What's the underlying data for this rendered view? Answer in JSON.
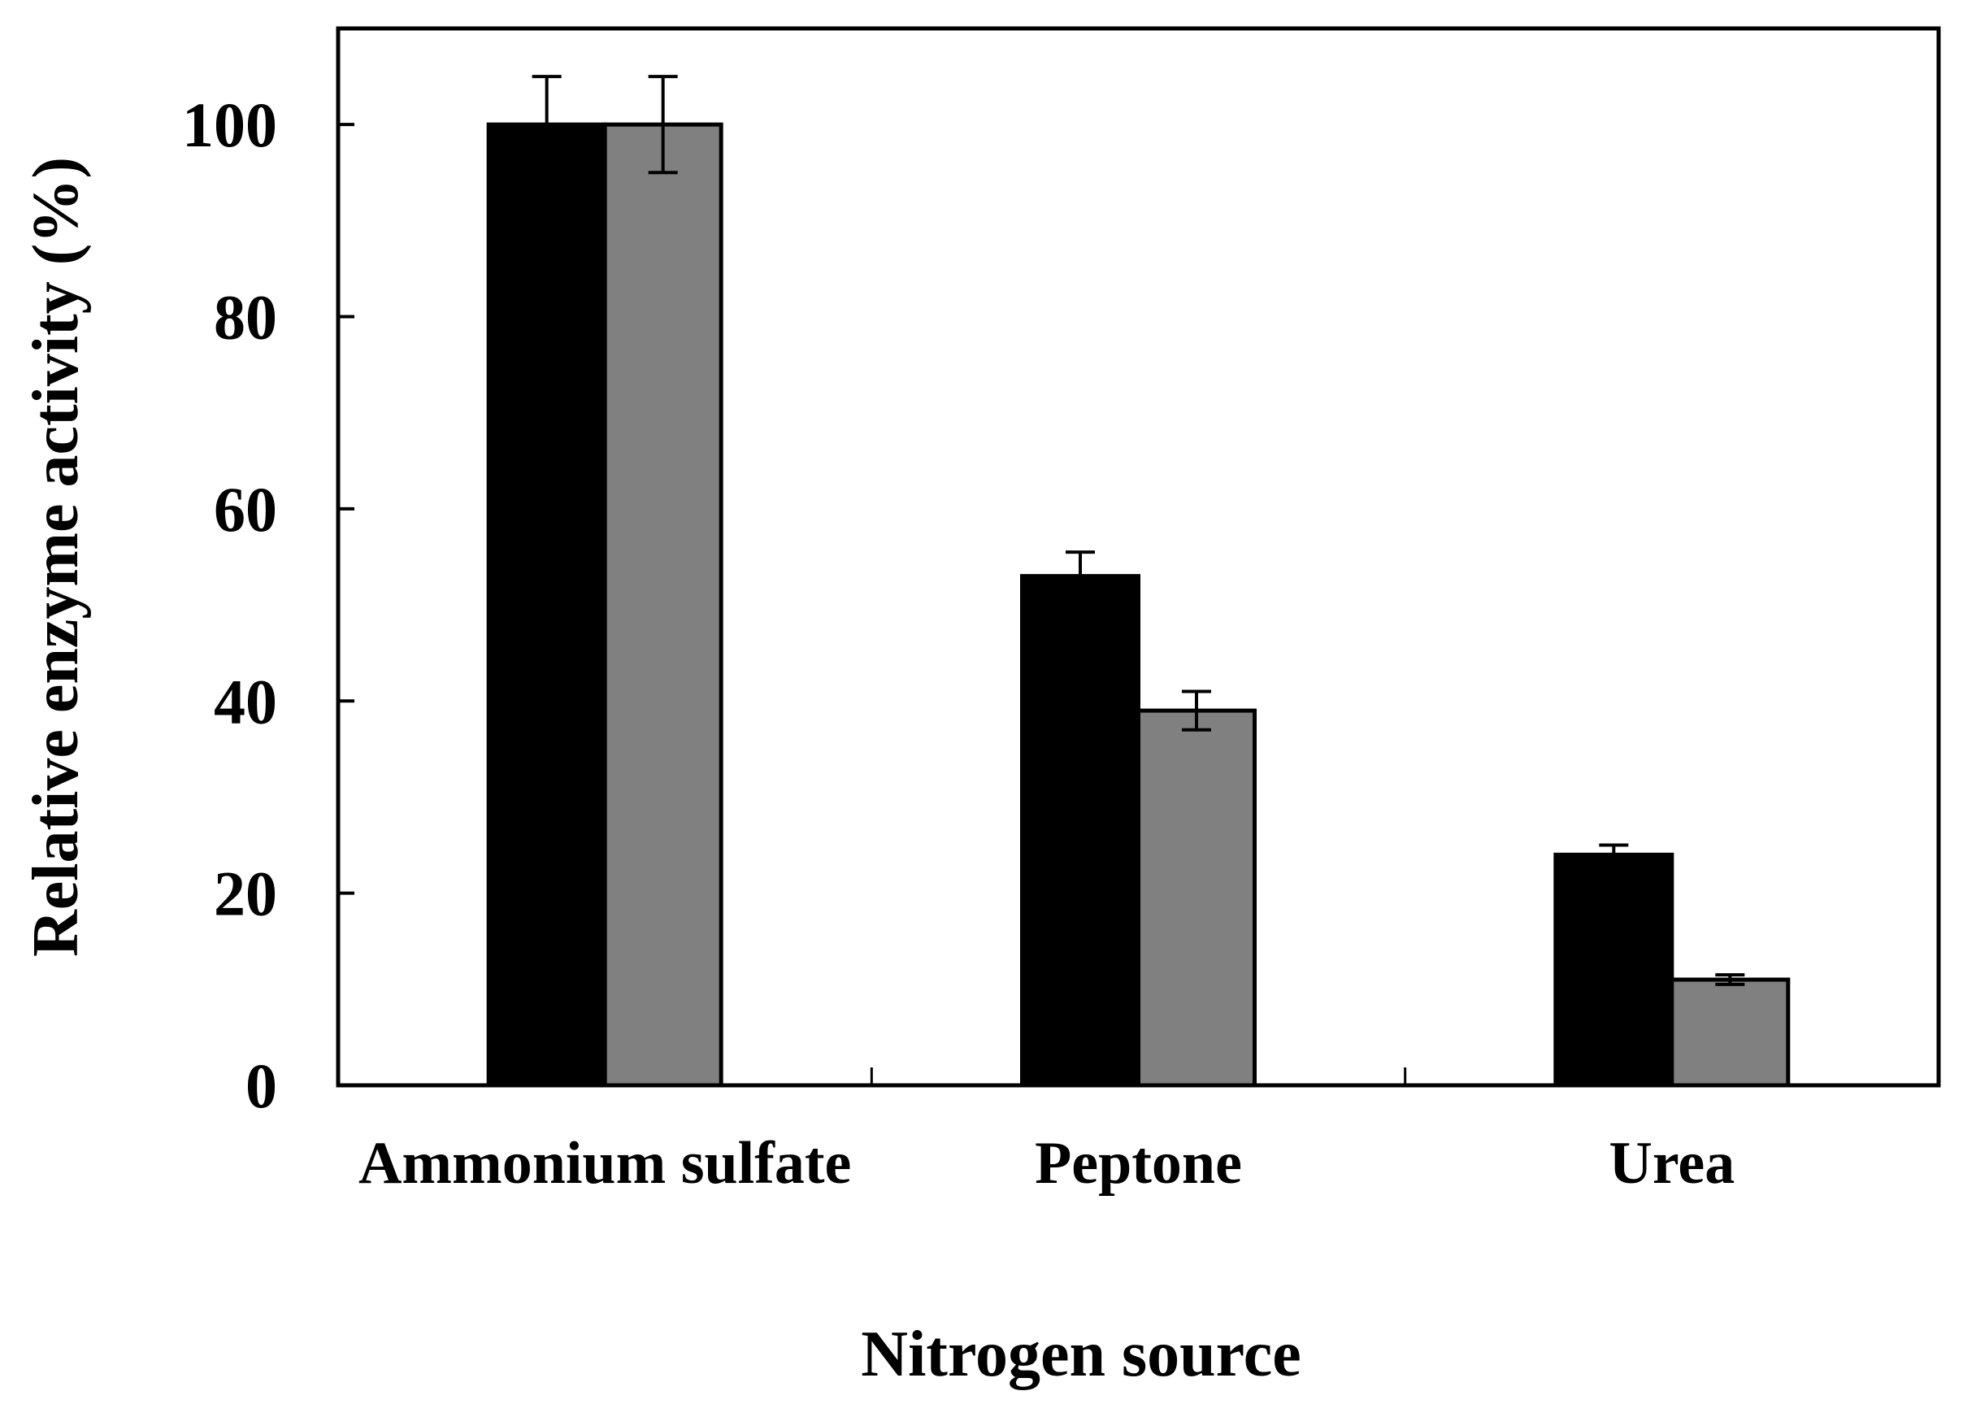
{
  "chart_data": {
    "type": "bar",
    "title": "",
    "xlabel": "Nitrogen source",
    "ylabel": "Relative enzyme activity (%)",
    "categories": [
      "Ammonium sulfate",
      "Peptone",
      "Urea"
    ],
    "ylim": [
      0,
      110
    ],
    "yticks": [
      0,
      20,
      40,
      60,
      80,
      100
    ],
    "grid": false,
    "legend": "none",
    "series": [
      {
        "values": [
          100,
          53,
          24
        ],
        "errors": [
          5,
          2.5,
          1
        ],
        "color": "#000000"
      },
      {
        "values": [
          100,
          39,
          11
        ],
        "errors": [
          5,
          2,
          0.5
        ],
        "color": "#808080"
      }
    ]
  }
}
